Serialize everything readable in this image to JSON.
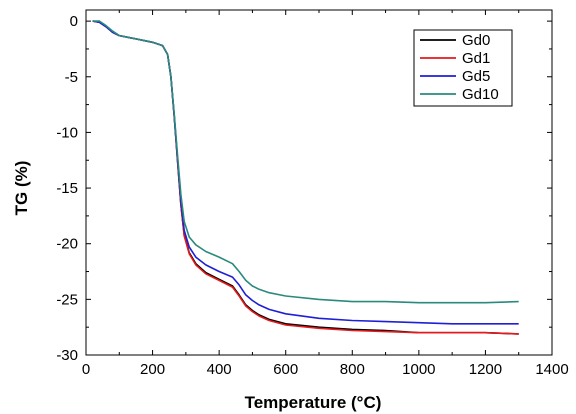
{
  "chart_data": {
    "type": "line",
    "title": "",
    "xlabel": "Temperature (°C)",
    "ylabel": "TG (%)",
    "xlim": [
      0,
      1400
    ],
    "ylim": [
      -30,
      1
    ],
    "xticks": [
      0,
      200,
      400,
      600,
      800,
      1000,
      1200,
      1400
    ],
    "yticks": [
      0,
      -5,
      -10,
      -15,
      -20,
      -25,
      -30
    ],
    "xtick_labels": [
      "0",
      "200",
      "400",
      "600",
      "800",
      "1000",
      "1200",
      "1400"
    ],
    "ytick_labels": [
      "0",
      "-5",
      "-10",
      "-15",
      "-20",
      "-25",
      "-30"
    ],
    "grid": false,
    "legend_position": "top-right",
    "series": [
      {
        "name": "Gd0",
        "color": "#000000",
        "x": [
          20,
          40,
          60,
          80,
          100,
          150,
          200,
          230,
          245,
          255,
          265,
          275,
          285,
          295,
          310,
          330,
          360,
          400,
          440,
          460,
          480,
          500,
          520,
          550,
          600,
          700,
          800,
          900,
          1000,
          1100,
          1200,
          1300
        ],
        "y": [
          0,
          -0.1,
          -0.5,
          -1.0,
          -1.3,
          -1.6,
          -1.9,
          -2.2,
          -3.0,
          -5.0,
          -8.5,
          -12.5,
          -16.5,
          -19.2,
          -20.8,
          -21.8,
          -22.6,
          -23.2,
          -23.8,
          -24.6,
          -25.5,
          -26.0,
          -26.4,
          -26.8,
          -27.2,
          -27.5,
          -27.7,
          -27.8,
          -28.0,
          -28.0,
          -28.0,
          -28.1
        ]
      },
      {
        "name": "Gd1",
        "color": "#e41a1c",
        "x": [
          20,
          40,
          60,
          80,
          100,
          150,
          200,
          230,
          245,
          255,
          265,
          275,
          285,
          295,
          310,
          330,
          360,
          400,
          440,
          460,
          480,
          500,
          520,
          550,
          600,
          700,
          800,
          900,
          1000,
          1100,
          1200,
          1300
        ],
        "y": [
          0,
          -0.1,
          -0.5,
          -1.0,
          -1.3,
          -1.6,
          -1.9,
          -2.2,
          -3.0,
          -5.0,
          -8.5,
          -12.5,
          -16.5,
          -19.3,
          -20.9,
          -21.9,
          -22.7,
          -23.3,
          -23.9,
          -24.7,
          -25.6,
          -26.1,
          -26.5,
          -26.9,
          -27.3,
          -27.6,
          -27.8,
          -27.9,
          -28.0,
          -28.0,
          -28.0,
          -28.1
        ]
      },
      {
        "name": "Gd5",
        "color": "#1f1fd8",
        "x": [
          20,
          40,
          60,
          80,
          100,
          150,
          200,
          230,
          245,
          255,
          265,
          275,
          285,
          295,
          310,
          330,
          360,
          400,
          440,
          460,
          480,
          500,
          520,
          550,
          600,
          700,
          800,
          900,
          1000,
          1100,
          1200,
          1300
        ],
        "y": [
          0,
          -0.1,
          -0.5,
          -1.0,
          -1.3,
          -1.6,
          -1.9,
          -2.2,
          -3.0,
          -5.0,
          -8.5,
          -12.3,
          -16.2,
          -18.8,
          -20.3,
          -21.2,
          -21.9,
          -22.5,
          -23.0,
          -23.7,
          -24.6,
          -25.1,
          -25.5,
          -25.9,
          -26.3,
          -26.7,
          -26.9,
          -27.0,
          -27.1,
          -27.2,
          -27.2,
          -27.2
        ]
      },
      {
        "name": "Gd10",
        "color": "#2a8a7e",
        "x": [
          20,
          40,
          60,
          80,
          100,
          150,
          200,
          230,
          245,
          255,
          265,
          275,
          285,
          295,
          310,
          330,
          360,
          400,
          440,
          460,
          480,
          500,
          520,
          550,
          600,
          700,
          800,
          900,
          1000,
          1100,
          1200,
          1300
        ],
        "y": [
          0,
          0,
          -0.4,
          -0.9,
          -1.3,
          -1.6,
          -1.9,
          -2.2,
          -3.0,
          -5.0,
          -8.3,
          -12.0,
          -15.6,
          -18.0,
          -19.4,
          -20.1,
          -20.7,
          -21.2,
          -21.8,
          -22.5,
          -23.3,
          -23.8,
          -24.1,
          -24.4,
          -24.7,
          -25.0,
          -25.2,
          -25.2,
          -25.3,
          -25.3,
          -25.3,
          -25.2
        ]
      }
    ]
  }
}
